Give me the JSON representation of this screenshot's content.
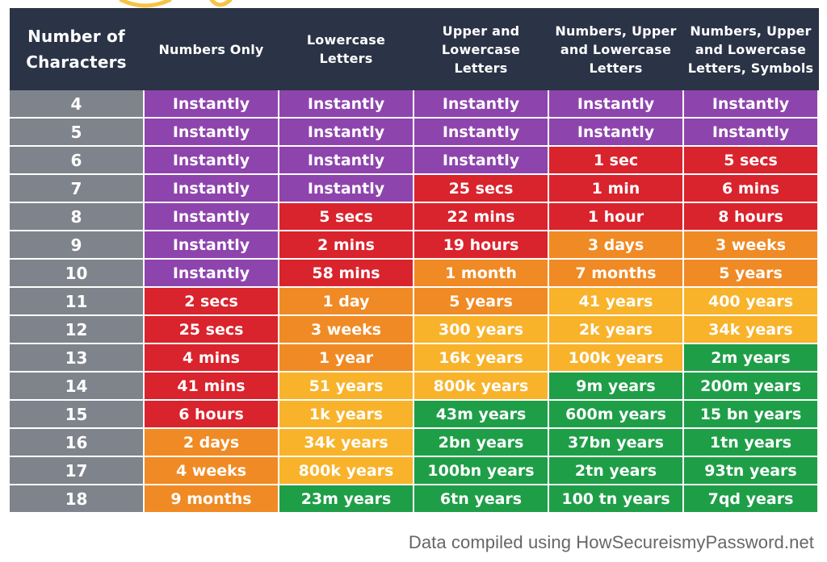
{
  "colors": {
    "header": "#2b3346",
    "row_label": "#7f838c",
    "Instantly": "#8e44ad",
    "seconds_to_hours": "#d9232d",
    "days_to_years": "#f08a24",
    "tens_to_thousands_years": "#f8b32b",
    "millions_plus_years": "#1f9e48"
  },
  "footer_note": "Data compiled using HowSecureismyPassword.net",
  "chart_data": {
    "type": "table",
    "columns": [
      "Number of Characters",
      "Numbers Only",
      "Lowercase Letters",
      "Upper and Lowercase Letters",
      "Numbers, Upper and Lowercase Letters",
      "Numbers, Upper and Lowercase Letters, Symbols"
    ],
    "rows": [
      {
        "chars": "4",
        "cells": [
          {
            "t": "Instantly",
            "c": "#8e44ad"
          },
          {
            "t": "Instantly",
            "c": "#8e44ad"
          },
          {
            "t": "Instantly",
            "c": "#8e44ad"
          },
          {
            "t": "Instantly",
            "c": "#8e44ad"
          },
          {
            "t": "Instantly",
            "c": "#8e44ad"
          }
        ]
      },
      {
        "chars": "5",
        "cells": [
          {
            "t": "Instantly",
            "c": "#8e44ad"
          },
          {
            "t": "Instantly",
            "c": "#8e44ad"
          },
          {
            "t": "Instantly",
            "c": "#8e44ad"
          },
          {
            "t": "Instantly",
            "c": "#8e44ad"
          },
          {
            "t": "Instantly",
            "c": "#8e44ad"
          }
        ]
      },
      {
        "chars": "6",
        "cells": [
          {
            "t": "Instantly",
            "c": "#8e44ad"
          },
          {
            "t": "Instantly",
            "c": "#8e44ad"
          },
          {
            "t": "Instantly",
            "c": "#8e44ad"
          },
          {
            "t": "1 sec",
            "c": "#d9232d"
          },
          {
            "t": "5 secs",
            "c": "#d9232d"
          }
        ]
      },
      {
        "chars": "7",
        "cells": [
          {
            "t": "Instantly",
            "c": "#8e44ad"
          },
          {
            "t": "Instantly",
            "c": "#8e44ad"
          },
          {
            "t": "25 secs",
            "c": "#d9232d"
          },
          {
            "t": "1 min",
            "c": "#d9232d"
          },
          {
            "t": "6 mins",
            "c": "#d9232d"
          }
        ]
      },
      {
        "chars": "8",
        "cells": [
          {
            "t": "Instantly",
            "c": "#8e44ad"
          },
          {
            "t": "5 secs",
            "c": "#d9232d"
          },
          {
            "t": "22 mins",
            "c": "#d9232d"
          },
          {
            "t": "1 hour",
            "c": "#d9232d"
          },
          {
            "t": "8 hours",
            "c": "#d9232d"
          }
        ]
      },
      {
        "chars": "9",
        "cells": [
          {
            "t": "Instantly",
            "c": "#8e44ad"
          },
          {
            "t": "2 mins",
            "c": "#d9232d"
          },
          {
            "t": "19 hours",
            "c": "#d9232d"
          },
          {
            "t": "3 days",
            "c": "#f08a24"
          },
          {
            "t": "3 weeks",
            "c": "#f08a24"
          }
        ]
      },
      {
        "chars": "10",
        "cells": [
          {
            "t": "Instantly",
            "c": "#8e44ad"
          },
          {
            "t": "58 mins",
            "c": "#d9232d"
          },
          {
            "t": "1 month",
            "c": "#f08a24"
          },
          {
            "t": "7 months",
            "c": "#f08a24"
          },
          {
            "t": "5 years",
            "c": "#f08a24"
          }
        ]
      },
      {
        "chars": "11",
        "cells": [
          {
            "t": "2 secs",
            "c": "#d9232d"
          },
          {
            "t": "1 day",
            "c": "#f08a24"
          },
          {
            "t": "5 years",
            "c": "#f08a24"
          },
          {
            "t": "41 years",
            "c": "#f8b32b"
          },
          {
            "t": "400 years",
            "c": "#f8b32b"
          }
        ]
      },
      {
        "chars": "12",
        "cells": [
          {
            "t": "25 secs",
            "c": "#d9232d"
          },
          {
            "t": "3 weeks",
            "c": "#f08a24"
          },
          {
            "t": "300 years",
            "c": "#f8b32b"
          },
          {
            "t": "2k years",
            "c": "#f8b32b"
          },
          {
            "t": "34k years",
            "c": "#f8b32b"
          }
        ]
      },
      {
        "chars": "13",
        "cells": [
          {
            "t": "4 mins",
            "c": "#d9232d"
          },
          {
            "t": "1 year",
            "c": "#f08a24"
          },
          {
            "t": "16k years",
            "c": "#f8b32b"
          },
          {
            "t": "100k years",
            "c": "#f8b32b"
          },
          {
            "t": "2m years",
            "c": "#1f9e48"
          }
        ]
      },
      {
        "chars": "14",
        "cells": [
          {
            "t": "41 mins",
            "c": "#d9232d"
          },
          {
            "t": "51 years",
            "c": "#f8b32b"
          },
          {
            "t": "800k years",
            "c": "#f8b32b"
          },
          {
            "t": "9m years",
            "c": "#1f9e48"
          },
          {
            "t": "200m years",
            "c": "#1f9e48"
          }
        ]
      },
      {
        "chars": "15",
        "cells": [
          {
            "t": "6 hours",
            "c": "#d9232d"
          },
          {
            "t": "1k years",
            "c": "#f8b32b"
          },
          {
            "t": "43m years",
            "c": "#1f9e48"
          },
          {
            "t": "600m years",
            "c": "#1f9e48"
          },
          {
            "t": "15 bn years",
            "c": "#1f9e48"
          }
        ]
      },
      {
        "chars": "16",
        "cells": [
          {
            "t": "2 days",
            "c": "#f08a24"
          },
          {
            "t": "34k years",
            "c": "#f8b32b"
          },
          {
            "t": "2bn years",
            "c": "#1f9e48"
          },
          {
            "t": "37bn years",
            "c": "#1f9e48"
          },
          {
            "t": "1tn years",
            "c": "#1f9e48"
          }
        ]
      },
      {
        "chars": "17",
        "cells": [
          {
            "t": "4 weeks",
            "c": "#f08a24"
          },
          {
            "t": "800k years",
            "c": "#f8b32b"
          },
          {
            "t": "100bn years",
            "c": "#1f9e48"
          },
          {
            "t": "2tn years",
            "c": "#1f9e48"
          },
          {
            "t": "93tn years",
            "c": "#1f9e48"
          }
        ]
      },
      {
        "chars": "18",
        "cells": [
          {
            "t": "9 months",
            "c": "#f08a24"
          },
          {
            "t": "23m years",
            "c": "#1f9e48"
          },
          {
            "t": "6tn years",
            "c": "#1f9e48"
          },
          {
            "t": "100 tn years",
            "c": "#1f9e48"
          },
          {
            "t": "7qd years",
            "c": "#1f9e48"
          }
        ]
      }
    ]
  }
}
